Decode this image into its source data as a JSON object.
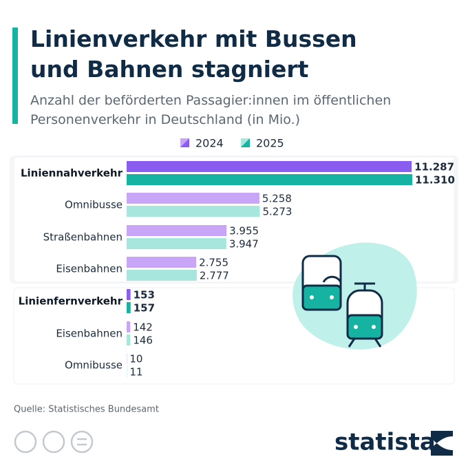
{
  "chart_data": {
    "type": "bar",
    "orientation": "horizontal",
    "title": [
      "Linienverkehr mit Bussen",
      "und Bahnen stagniert"
    ],
    "subtitle": [
      "Anzahl der beförderten Passagier:innen im öffentlichen",
      "Personenverkehr in Deutschland (in Mio.)"
    ],
    "categories": [
      "Liniennahverkehr",
      "Omnibusse",
      "Straßenbahnen",
      "Eisenbahnen",
      "Linienfernverkehr",
      "Eisenbahnen",
      "Omnibusse"
    ],
    "highlight": [
      true,
      false,
      false,
      false,
      true,
      false,
      false
    ],
    "series": [
      {
        "name": "2024",
        "color": "#8a5cf0",
        "light_color": "#c9a5f7",
        "values": [
          11287,
          5258,
          3955,
          2755,
          153,
          142,
          10
        ],
        "value_labels": [
          "11.287",
          "5.258",
          "3.955",
          "2.755",
          "153",
          "142",
          "10"
        ]
      },
      {
        "name": "2025",
        "color": "#16b3a3",
        "light_color": "#a6e6dc",
        "values": [
          11310,
          5273,
          3947,
          2777,
          157,
          146,
          11
        ],
        "value_labels": [
          "11.310",
          "5.273",
          "3.947",
          "2.777",
          "157",
          "146",
          "11"
        ]
      }
    ],
    "source": "Quelle: Statistisches Bundesamt",
    "brand": "statista"
  }
}
